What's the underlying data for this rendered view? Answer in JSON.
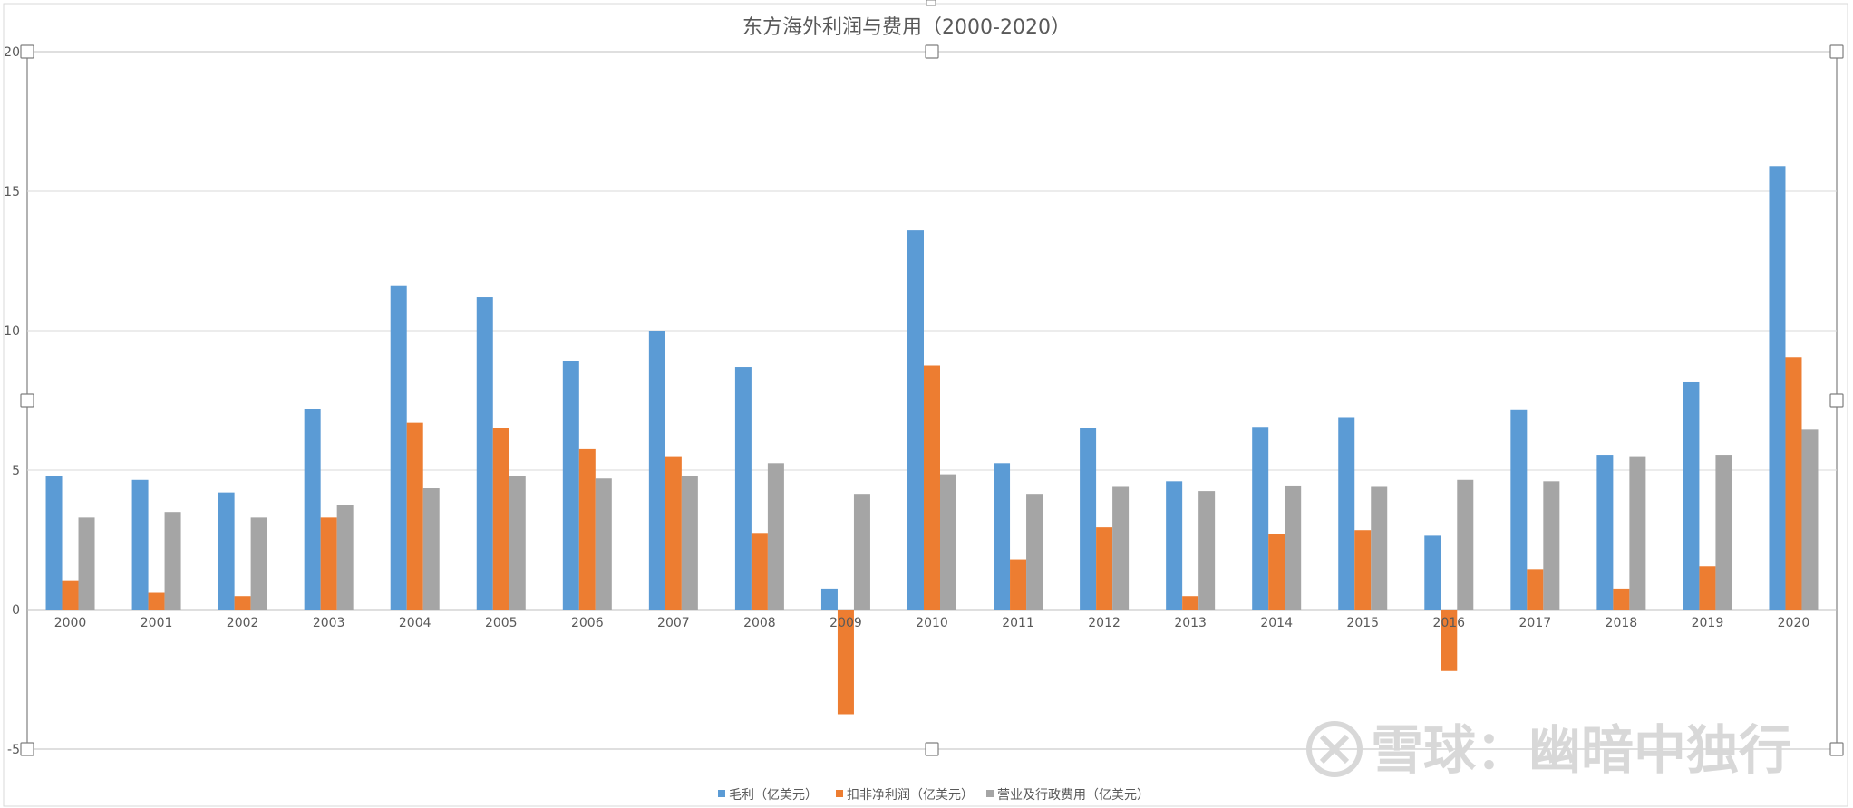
{
  "chart_data": {
    "type": "bar",
    "title": "东方海外利润与费用（2000-2020）",
    "categories": [
      "2000",
      "2001",
      "2002",
      "2003",
      "2004",
      "2005",
      "2006",
      "2007",
      "2008",
      "2009",
      "2010",
      "2011",
      "2012",
      "2013",
      "2014",
      "2015",
      "2016",
      "2017",
      "2018",
      "2019",
      "2020"
    ],
    "series": [
      {
        "name": "毛利（亿美元）",
        "color": "#5b9bd5",
        "values": [
          4.8,
          4.65,
          4.2,
          7.2,
          11.6,
          11.2,
          8.9,
          10.0,
          8.7,
          0.75,
          13.6,
          5.25,
          6.5,
          4.6,
          6.55,
          6.9,
          2.65,
          7.15,
          5.55,
          8.15,
          15.9
        ]
      },
      {
        "name": "扣非净利润（亿美元）",
        "color": "#ed7d31",
        "values": [
          1.05,
          0.6,
          0.48,
          3.3,
          6.7,
          6.5,
          5.75,
          5.5,
          2.75,
          -3.75,
          8.75,
          1.8,
          2.95,
          0.48,
          2.7,
          2.85,
          -2.2,
          1.45,
          0.75,
          1.55,
          9.05
        ]
      },
      {
        "name": "营业及行政费用（亿美元）",
        "color": "#a5a5a5",
        "values": [
          3.3,
          3.5,
          3.3,
          3.75,
          4.35,
          4.8,
          4.7,
          4.8,
          5.25,
          4.15,
          4.85,
          4.15,
          4.4,
          4.25,
          4.45,
          4.4,
          4.65,
          4.6,
          5.5,
          5.55,
          6.45
        ]
      }
    ],
    "ylim": [
      -5,
      20
    ],
    "yticks": [
      "20",
      "15",
      "10",
      "5",
      "0",
      "-5"
    ],
    "grid": true,
    "legend_position": "bottom"
  },
  "watermark": {
    "text": "雪球：幽暗中独行"
  }
}
